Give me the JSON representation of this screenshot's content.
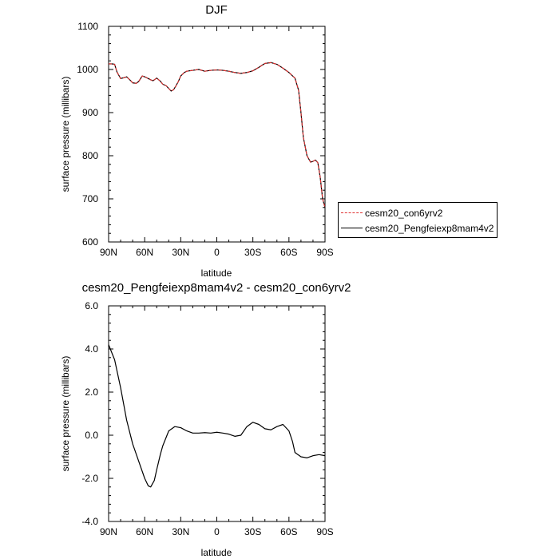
{
  "chart_data": [
    {
      "type": "line",
      "title": "DJF",
      "xlabel": "latitude",
      "ylabel": "surface pressure (millibars)",
      "xlim": [
        90,
        -90
      ],
      "ylim": [
        600,
        1100
      ],
      "x_ticks": [
        90,
        60,
        30,
        0,
        -30,
        -60,
        -90
      ],
      "x_tick_labels": [
        "90N",
        "60N",
        "30N",
        "0",
        "30S",
        "60S",
        "90S"
      ],
      "y_ticks": [
        600,
        700,
        800,
        900,
        1000,
        1100
      ],
      "y_tick_labels": [
        "600",
        "700",
        "800",
        "900",
        "1000",
        "1100"
      ],
      "legend": "right",
      "series": [
        {
          "name": "cesm20_con6yrv2",
          "color": "#e03030",
          "dash": true,
          "x": [
            90,
            87,
            85,
            83,
            80,
            77,
            75,
            72,
            70,
            67,
            65,
            62,
            60,
            57,
            55,
            53,
            50,
            47,
            45,
            42,
            40,
            38,
            36,
            34,
            32,
            30,
            27,
            25,
            20,
            15,
            10,
            5,
            0,
            -5,
            -10,
            -15,
            -20,
            -25,
            -30,
            -35,
            -40,
            -45,
            -50,
            -55,
            -60,
            -63,
            -65,
            -68,
            -70,
            -72,
            -75,
            -78,
            -80,
            -82,
            -84,
            -86,
            -88,
            -90
          ],
          "y": [
            1013,
            1013,
            1012,
            994,
            979,
            981,
            983,
            975,
            969,
            968,
            972,
            985,
            983,
            979,
            976,
            974,
            980,
            973,
            966,
            962,
            956,
            950,
            953,
            962,
            972,
            985,
            993,
            996,
            998,
            1000,
            996,
            998,
            999,
            998,
            996,
            993,
            991,
            993,
            997,
            1005,
            1014,
            1016,
            1012,
            1003,
            993,
            985,
            980,
            952,
            900,
            842,
            800,
            785,
            787,
            790,
            784,
            750,
            700,
            680
          ]
        },
        {
          "name": "cesm20_Pengfeiexp8mam4v2",
          "color": "#000000",
          "dash": false,
          "x": [
            90,
            87,
            85,
            83,
            80,
            77,
            75,
            72,
            70,
            67,
            65,
            62,
            60,
            57,
            55,
            53,
            50,
            47,
            45,
            42,
            40,
            38,
            36,
            34,
            32,
            30,
            27,
            25,
            20,
            15,
            10,
            5,
            0,
            -5,
            -10,
            -15,
            -20,
            -25,
            -30,
            -35,
            -40,
            -45,
            -50,
            -55,
            -60,
            -63,
            -65,
            -68,
            -70,
            -72,
            -75,
            -78,
            -80,
            -82,
            -84,
            -86,
            -88,
            -90
          ],
          "y": [
            1013,
            1013,
            1012,
            994,
            979,
            981,
            983,
            975,
            969,
            968,
            972,
            985,
            983,
            979,
            976,
            974,
            980,
            973,
            966,
            962,
            956,
            950,
            953,
            962,
            972,
            985,
            993,
            996,
            998,
            1000,
            996,
            998,
            999,
            998,
            996,
            993,
            991,
            993,
            997,
            1005,
            1014,
            1016,
            1012,
            1003,
            993,
            985,
            980,
            952,
            900,
            842,
            800,
            785,
            787,
            790,
            784,
            750,
            700,
            680
          ]
        }
      ]
    },
    {
      "type": "line",
      "title": "cesm20_Pengfeiexp8mam4v2 - cesm20_con6yrv2",
      "xlabel": "latitude",
      "ylabel": "surface pressure (millibars)",
      "xlim": [
        90,
        -90
      ],
      "ylim": [
        -4,
        6
      ],
      "x_ticks": [
        90,
        60,
        30,
        0,
        -30,
        -60,
        -90
      ],
      "x_tick_labels": [
        "90N",
        "60N",
        "30N",
        "0",
        "30S",
        "60S",
        "90S"
      ],
      "y_ticks": [
        -4,
        -2,
        0,
        2,
        4,
        6
      ],
      "y_tick_labels": [
        "-4.0",
        "-2.0",
        "0.0",
        "2.0",
        "4.0",
        "6.0"
      ],
      "series": [
        {
          "color": "#000000",
          "x": [
            90,
            85,
            80,
            75,
            70,
            65,
            60,
            57,
            55,
            52,
            50,
            47,
            45,
            40,
            35,
            30,
            25,
            20,
            15,
            10,
            5,
            0,
            -5,
            -10,
            -15,
            -20,
            -25,
            -30,
            -35,
            -40,
            -45,
            -50,
            -55,
            -60,
            -63,
            -65,
            -70,
            -75,
            -80,
            -85,
            -90
          ],
          "y": [
            4.2,
            3.5,
            2.2,
            0.7,
            -0.4,
            -1.2,
            -2.0,
            -2.35,
            -2.4,
            -2.1,
            -1.6,
            -0.9,
            -0.5,
            0.2,
            0.4,
            0.35,
            0.2,
            0.1,
            0.1,
            0.12,
            0.1,
            0.14,
            0.1,
            0.05,
            -0.05,
            0.0,
            0.4,
            0.6,
            0.5,
            0.3,
            0.25,
            0.4,
            0.5,
            0.2,
            -0.3,
            -0.8,
            -1.0,
            -1.05,
            -0.95,
            -0.9,
            -0.95
          ]
        }
      ]
    }
  ]
}
